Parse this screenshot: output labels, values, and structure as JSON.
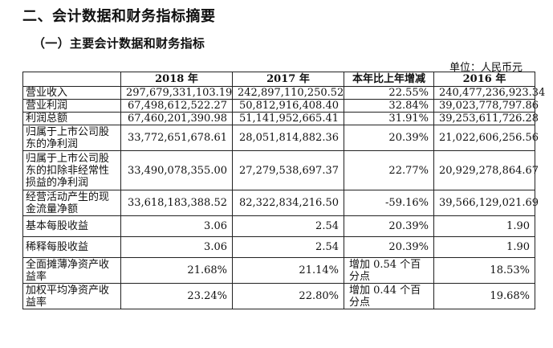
{
  "headings": {
    "section_title": "二、会计数据和财务指标摘要",
    "subsection_title": "（一）主要会计数据和财务指标",
    "unit_label": "单位：人民币元"
  },
  "table": {
    "columns": [
      "",
      "2018 年",
      "2017 年",
      "本年比上年增减",
      "2016 年"
    ],
    "rows": [
      {
        "label": "营业收入",
        "y2018": "297,679,331,103.19",
        "y2017": "242,897,110,250.52",
        "change": "22.55%",
        "y2016": "240,477,236,923.34"
      },
      {
        "label": "营业利润",
        "y2018": "67,498,612,522.27",
        "y2017": "50,812,916,408.40",
        "change": "32.84%",
        "y2016": "39,023,778,797.86"
      },
      {
        "label": "利润总额",
        "y2018": "67,460,201,390.98",
        "y2017": "51,141,952,665.41",
        "change": "31.91%",
        "y2016": "39,253,611,726.28"
      },
      {
        "label": "归属于上市公司股东的净利润",
        "y2018": "33,772,651,678.61",
        "y2017": "28,051,814,882.36",
        "change": "20.39%",
        "y2016": "21,022,606,256.56"
      },
      {
        "label": "归属于上市公司股东的扣除非经常性损益的净利润",
        "y2018": "33,490,078,355.00",
        "y2017": "27,279,538,697.37",
        "change": "22.77%",
        "y2016": "20,929,278,864.67"
      },
      {
        "label": "经营活动产生的现金流量净额",
        "y2018": "33,618,183,388.52",
        "y2017": "82,322,834,216.50",
        "change": "-59.16%",
        "y2016": "39,566,129,021.69"
      },
      {
        "label": "基本每股收益",
        "y2018": "3.06",
        "y2017": "2.54",
        "change": "20.39%",
        "y2016": "1.90"
      },
      {
        "label": "稀释每股收益",
        "y2018": "3.06",
        "y2017": "2.54",
        "change": "20.39%",
        "y2016": "1.90"
      },
      {
        "label": "全面摊薄净资产收益率",
        "y2018": "21.68%",
        "y2017": "21.14%",
        "change": "增加 0.54 个百分点",
        "y2016": "18.53%"
      },
      {
        "label": "加权平均净资产收益率",
        "y2018": "23.24%",
        "y2017": "22.80%",
        "change": "增加 0.44 个百分点",
        "y2016": "19.68%"
      }
    ]
  }
}
